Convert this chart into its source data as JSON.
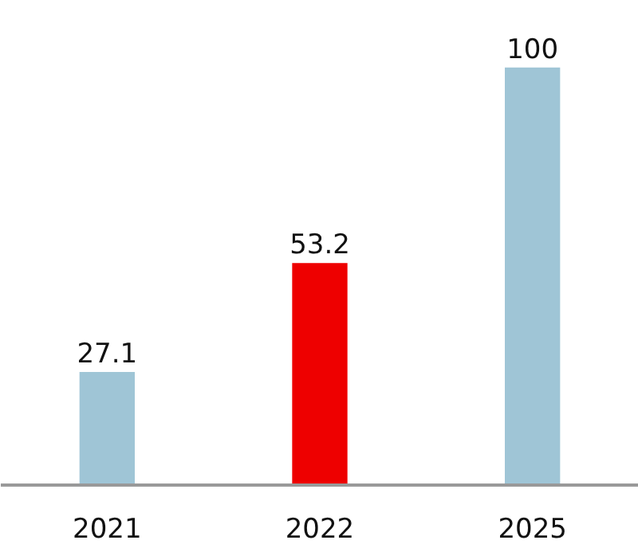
{
  "chart_data": {
    "type": "bar",
    "categories": [
      "2021",
      "2022",
      "2025"
    ],
    "values": [
      27.1,
      53.2,
      100
    ],
    "colors": [
      "#9fc5d6",
      "#ee0000",
      "#9fc5d6"
    ],
    "data_labels": true
  }
}
